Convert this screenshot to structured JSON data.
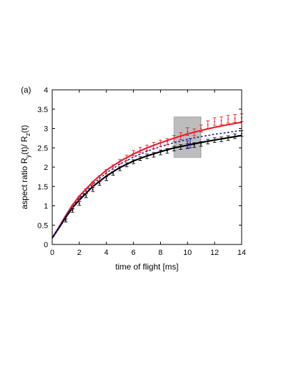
{
  "panel_label": "(a)",
  "chart_data": {
    "type": "line",
    "xlabel": "time of flight [ms]",
    "ylabel": "aspect ratio  R_y(t)/ R_z(t)",
    "xlim": [
      0,
      14
    ],
    "ylim": [
      0,
      4
    ],
    "xticks": [
      0,
      2,
      4,
      6,
      8,
      10,
      12,
      14
    ],
    "yticks": [
      0,
      0.5,
      1,
      1.5,
      2,
      2.5,
      3,
      3.5,
      4
    ],
    "grid": false,
    "shaded_region": {
      "x": [
        9,
        11
      ],
      "y": [
        2.25,
        3.3
      ],
      "color": "#bdbdbd"
    },
    "colors": {
      "red": "#e8202a",
      "black": "#000000",
      "blue": "#1a1aa0",
      "shade": "#bdbdbd"
    },
    "series": [
      {
        "style": "solid",
        "color": "#e8202a",
        "x": [
          0,
          0.5,
          1,
          1.5,
          2,
          3,
          4,
          5,
          6,
          7,
          8,
          9,
          10,
          11,
          12,
          13,
          14
        ],
        "y": [
          0.17,
          0.45,
          0.75,
          1.02,
          1.25,
          1.62,
          1.92,
          2.15,
          2.34,
          2.5,
          2.63,
          2.75,
          2.86,
          2.95,
          3.03,
          3.1,
          3.16
        ]
      },
      {
        "style": "solid",
        "color": "#000000",
        "x": [
          0,
          0.5,
          1,
          1.5,
          2,
          3,
          4,
          5,
          6,
          7,
          8,
          9,
          10,
          11,
          12,
          13,
          14
        ],
        "y": [
          0.17,
          0.43,
          0.7,
          0.95,
          1.15,
          1.5,
          1.77,
          1.99,
          2.16,
          2.29,
          2.4,
          2.5,
          2.57,
          2.64,
          2.7,
          2.76,
          2.82
        ]
      },
      {
        "style": "dotted",
        "color": "#1a1aa0",
        "x": [
          0,
          0.5,
          1,
          1.5,
          2,
          3,
          4,
          5,
          6,
          7,
          8,
          9,
          10,
          11,
          12,
          13,
          14
        ],
        "y": [
          0.17,
          0.44,
          0.72,
          0.98,
          1.2,
          1.56,
          1.85,
          2.08,
          2.26,
          2.41,
          2.53,
          2.63,
          2.72,
          2.79,
          2.85,
          2.9,
          2.95
        ]
      },
      {
        "style": "errorbars",
        "color": "#e8202a",
        "x": [
          1.5,
          2,
          2.5,
          3,
          3.5,
          4,
          4.5,
          5,
          5.5,
          6,
          6.5,
          7,
          7.5,
          8,
          8.5,
          9,
          9.5,
          10,
          10.5,
          11,
          11.5,
          12,
          12.5,
          13,
          13.5,
          14
        ],
        "y": [
          0.96,
          1.2,
          1.38,
          1.56,
          1.72,
          1.88,
          2.0,
          2.14,
          2.24,
          2.36,
          2.44,
          2.5,
          2.56,
          2.62,
          2.66,
          2.74,
          2.8,
          2.92,
          2.9,
          3.0,
          3.1,
          3.18,
          3.2,
          3.24,
          3.26,
          3.28
        ],
        "err": [
          0.05,
          0.05,
          0.06,
          0.06,
          0.06,
          0.06,
          0.06,
          0.06,
          0.07,
          0.07,
          0.07,
          0.07,
          0.08,
          0.08,
          0.08,
          0.08,
          0.09,
          0.1,
          0.09,
          0.09,
          0.1,
          0.1,
          0.1,
          0.1,
          0.1,
          0.1
        ]
      },
      {
        "style": "errorbars",
        "color": "#000000",
        "x": [
          1,
          1.5,
          2,
          2.5,
          3,
          3.5,
          4,
          4.5,
          5,
          5.5,
          6,
          6.5,
          7,
          7.5,
          8,
          8.5,
          9,
          9.5,
          10,
          10.5,
          11,
          11.5,
          12,
          12.5,
          13,
          13.5,
          14
        ],
        "y": [
          0.62,
          0.88,
          1.06,
          1.26,
          1.42,
          1.58,
          1.7,
          1.84,
          1.96,
          2.06,
          2.14,
          2.22,
          2.28,
          2.32,
          2.38,
          2.42,
          2.48,
          2.52,
          2.55,
          2.57,
          2.6,
          2.66,
          2.7,
          2.72,
          2.75,
          2.8,
          2.87
        ],
        "err": [
          0.04,
          0.05,
          0.05,
          0.05,
          0.05,
          0.05,
          0.05,
          0.05,
          0.05,
          0.05,
          0.05,
          0.05,
          0.06,
          0.06,
          0.06,
          0.06,
          0.06,
          0.06,
          0.06,
          0.06,
          0.06,
          0.06,
          0.06,
          0.06,
          0.06,
          0.06,
          0.07
        ]
      },
      {
        "style": "errorbars",
        "color": "#1a1aa0",
        "x": [
          10,
          10.2
        ],
        "y": [
          2.58,
          2.62
        ],
        "err": [
          0.1,
          0.12
        ]
      }
    ]
  }
}
